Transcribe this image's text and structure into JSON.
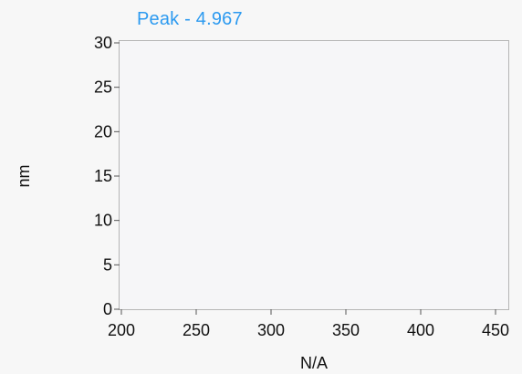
{
  "chart_data": {
    "type": "line",
    "title": "Peak - 4.967",
    "xlabel": "N/A",
    "ylabel": "nm",
    "xlim": [
      200,
      450
    ],
    "ylim": [
      0,
      30
    ],
    "x_ticks": [
      200,
      250,
      300,
      350,
      400,
      450
    ],
    "y_ticks": [
      0,
      5,
      10,
      15,
      20,
      25,
      30
    ],
    "series": [],
    "grid": false,
    "colors": {
      "title": "#2c9af0",
      "plot_background": "#f6f6f8",
      "frame": "#b5b5b5",
      "text": "#111111"
    }
  }
}
